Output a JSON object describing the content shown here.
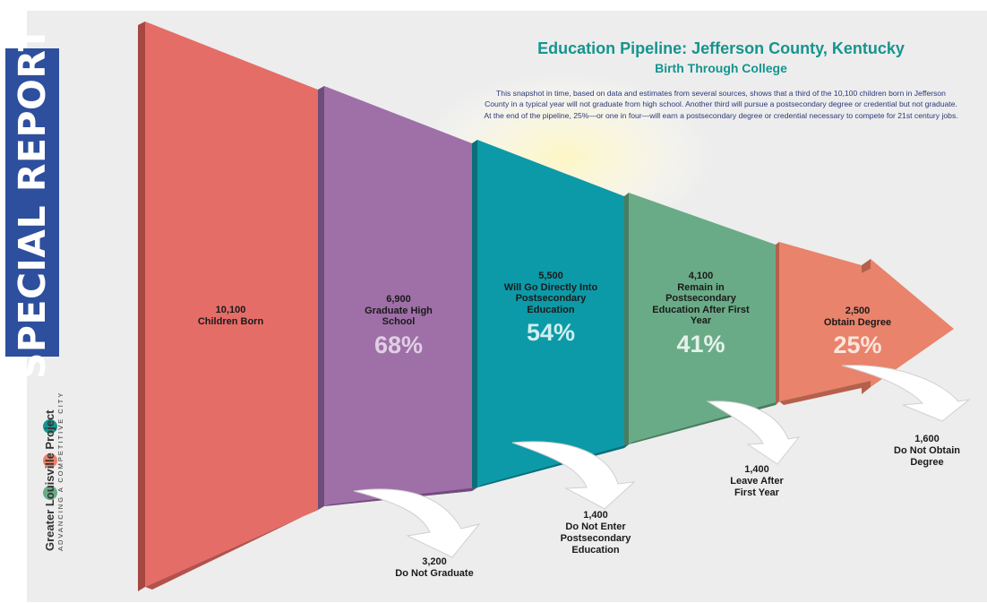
{
  "badge": {
    "text": "SPECIAL REPORT"
  },
  "brand": {
    "name": "Greater Louisville Project",
    "tagline": "ADVANCING A COMPETITIVE CITY"
  },
  "header": {
    "title": "Education Pipeline: Jefferson County, Kentucky",
    "subtitle": "Birth Through College",
    "description": "This snapshot in time, based on data and estimates from several sources, shows that a third of the 10,100 children born in Jefferson County in a typical year will not graduate from high school.  Another third will pursue a postsecondary degree or credential but not graduate.  At the end of the pipeline, 25%—or one in four—will earn a postsecondary degree or credential necessary to compete for 21st century jobs."
  },
  "stages": [
    {
      "count": "10,100",
      "label": "Children Born",
      "percent": "",
      "color": "#e46d68"
    },
    {
      "count": "6,900",
      "label": "Graduate High School",
      "percent": "68%",
      "color": "#9f6fa8"
    },
    {
      "count": "5,500",
      "label": "Will Go Directly Into Postsecondary Education",
      "percent": "54%",
      "color": "#0d9aa8"
    },
    {
      "count": "4,100",
      "label": "Remain in Postsecondary Education After First Year",
      "percent": "41%",
      "color": "#6aab87"
    },
    {
      "count": "2,500",
      "label": "Obtain Degree",
      "percent": "25%",
      "color": "#e9836b"
    }
  ],
  "dropouts": [
    {
      "count": "3,200",
      "label": "Do Not Graduate"
    },
    {
      "count": "1,400",
      "label": "Do Not Enter Postsecondary Education"
    },
    {
      "count": "1,400",
      "label": "Leave After First Year"
    },
    {
      "count": "1,600",
      "label": "Do Not Obtain Degree"
    }
  ],
  "colors": {
    "title": "#16948e",
    "description": "#2a3a7a",
    "badge": "#2d4f9e",
    "percent_text": "#ece5ef"
  }
}
